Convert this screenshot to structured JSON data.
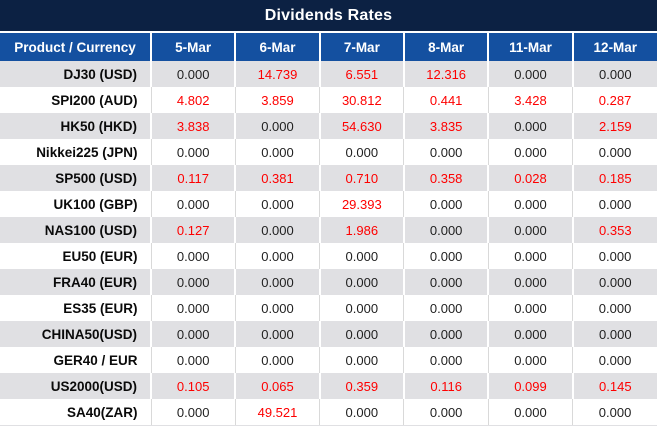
{
  "title": "Dividends Rates",
  "colors": {
    "title_bg": "#0c2143",
    "header_bg": "#1450a0",
    "row_alt_bg": "#e0e0e3",
    "zero_value": "#1f1f1f",
    "nonzero_value": "#fe0000"
  },
  "table": {
    "product_header": "Product / Currency",
    "date_headers": [
      "5-Mar",
      "6-Mar",
      "7-Mar",
      "8-Mar",
      "11-Mar",
      "12-Mar"
    ],
    "rows": [
      {
        "product": "DJ30 (USD)",
        "values": [
          "0.000",
          "14.739",
          "6.551",
          "12.316",
          "0.000",
          "0.000"
        ]
      },
      {
        "product": "SPI200 (AUD)",
        "values": [
          "4.802",
          "3.859",
          "30.812",
          "0.441",
          "3.428",
          "0.287"
        ]
      },
      {
        "product": "HK50 (HKD)",
        "values": [
          "3.838",
          "0.000",
          "54.630",
          "3.835",
          "0.000",
          "2.159"
        ]
      },
      {
        "product": "Nikkei225 (JPN)",
        "values": [
          "0.000",
          "0.000",
          "0.000",
          "0.000",
          "0.000",
          "0.000"
        ]
      },
      {
        "product": "SP500 (USD)",
        "values": [
          "0.117",
          "0.381",
          "0.710",
          "0.358",
          "0.028",
          "0.185"
        ]
      },
      {
        "product": "UK100 (GBP)",
        "values": [
          "0.000",
          "0.000",
          "29.393",
          "0.000",
          "0.000",
          "0.000"
        ]
      },
      {
        "product": "NAS100 (USD)",
        "values": [
          "0.127",
          "0.000",
          "1.986",
          "0.000",
          "0.000",
          "0.353"
        ]
      },
      {
        "product": "EU50 (EUR)",
        "values": [
          "0.000",
          "0.000",
          "0.000",
          "0.000",
          "0.000",
          "0.000"
        ]
      },
      {
        "product": "FRA40 (EUR)",
        "values": [
          "0.000",
          "0.000",
          "0.000",
          "0.000",
          "0.000",
          "0.000"
        ]
      },
      {
        "product": "ES35 (EUR)",
        "values": [
          "0.000",
          "0.000",
          "0.000",
          "0.000",
          "0.000",
          "0.000"
        ]
      },
      {
        "product": "CHINA50(USD)",
        "values": [
          "0.000",
          "0.000",
          "0.000",
          "0.000",
          "0.000",
          "0.000"
        ]
      },
      {
        "product": "GER40 / EUR",
        "values": [
          "0.000",
          "0.000",
          "0.000",
          "0.000",
          "0.000",
          "0.000"
        ]
      },
      {
        "product": "US2000(USD)",
        "values": [
          "0.105",
          "0.065",
          "0.359",
          "0.116",
          "0.099",
          "0.145"
        ]
      },
      {
        "product": "SA40(ZAR)",
        "values": [
          "0.000",
          "49.521",
          "0.000",
          "0.000",
          "0.000",
          "0.000"
        ]
      }
    ]
  }
}
